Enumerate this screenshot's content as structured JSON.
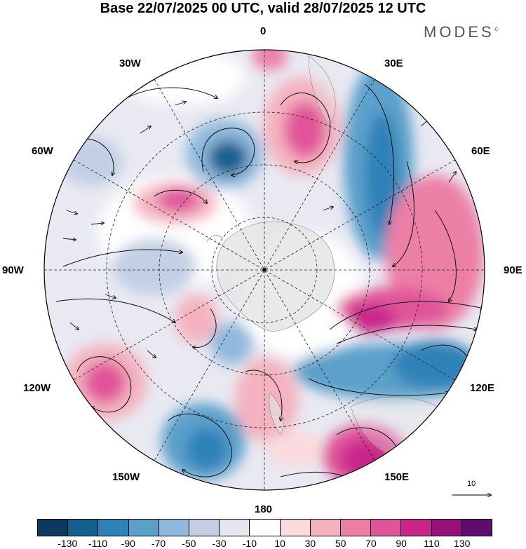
{
  "title": "Base 22/07/2025 00 UTC, valid 28/07/2025 12 UTC",
  "brand": "MODES",
  "brand_mark": "©",
  "longitude_labels": {
    "top": "0",
    "e30": "30E",
    "e60": "60E",
    "e90": "90E",
    "e120": "120E",
    "e150": "150E",
    "bottom": "180",
    "w150": "150W",
    "w120": "120W",
    "w90": "90W",
    "w60": "60W",
    "w30": "30W"
  },
  "vector_scale_label": "10",
  "colorbar": {
    "colors": [
      "#0b3a5e",
      "#13608f",
      "#2d82b8",
      "#5ba0cb",
      "#8fb9dc",
      "#c3cfe4",
      "#e6e6f0",
      "#ffffff",
      "#fadadd",
      "#f4b2bf",
      "#ec7fa5",
      "#e0559a",
      "#c8268a",
      "#94117a",
      "#5e0c6e"
    ],
    "labels": [
      "-130",
      "-110",
      "-90",
      "-70",
      "-50",
      "-30",
      "-10",
      "10",
      "30",
      "50",
      "70",
      "90",
      "110",
      "130"
    ]
  },
  "palette": {
    "ocean_blue": "#2d82b8",
    "land": "#e5e5e5",
    "pink": "#e0559a"
  }
}
